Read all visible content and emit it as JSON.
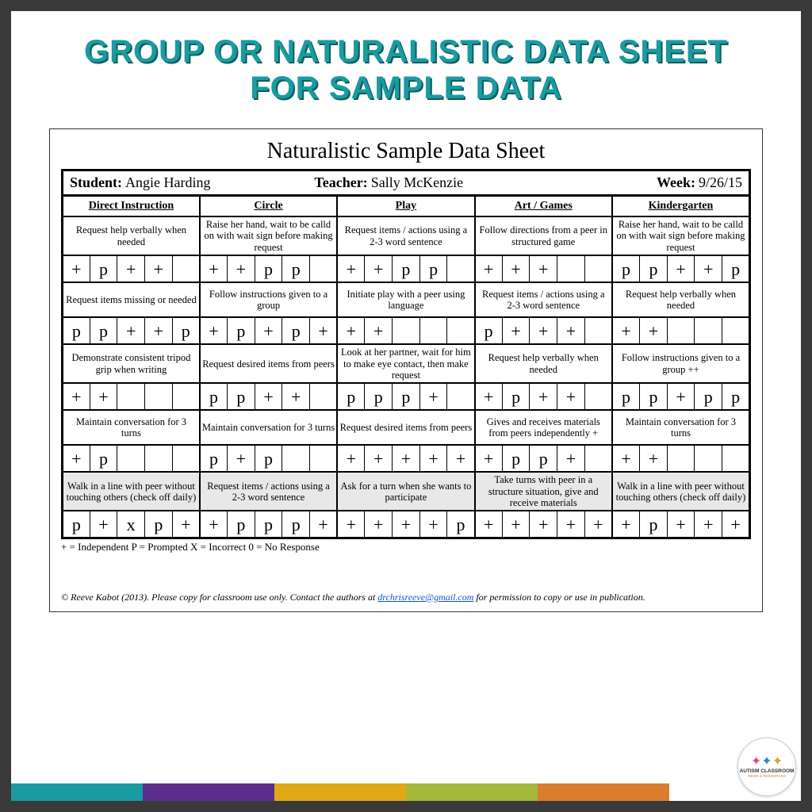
{
  "title_line1": "GROUP OR NATURALISTIC DATA SHEET",
  "title_line2": "FOR SAMPLE DATA",
  "sheet_title": "Naturalistic Sample Data Sheet",
  "info": {
    "student_label": "Student:",
    "student_value": "Angie Harding",
    "teacher_label": "Teacher:",
    "teacher_value": "Sally McKenzie",
    "week_label": "Week:",
    "week_value": "9/26/15"
  },
  "columns": [
    "Direct Instruction",
    "Circle",
    "Play",
    "Art / Games",
    "Kindergarten"
  ],
  "rows": [
    {
      "shade": false,
      "desc": [
        "Request help verbally when needed",
        "Raise her hand, wait to be calld on with wait sign before making request",
        "Request items / actions using a 2-3 word sentence",
        "Follow directions from a peer in structured game",
        "Raise her hand, wait to be calld on with wait sign before making request"
      ],
      "marks": [
        [
          "+",
          "p",
          "+",
          "+",
          ""
        ],
        [
          "+",
          "+",
          "p",
          "p",
          ""
        ],
        [
          "+",
          "+",
          "p",
          "p",
          ""
        ],
        [
          "+",
          "+",
          "+",
          "",
          ""
        ],
        [
          "p",
          "p",
          "+",
          "+",
          "p"
        ]
      ]
    },
    {
      "shade": false,
      "desc": [
        "Request items missing or needed",
        "Follow instructions given to a group",
        "Initiate play with a peer using language",
        "Request items / actions using a 2-3 word sentence",
        "Request help verbally when needed"
      ],
      "marks": [
        [
          "p",
          "p",
          "+",
          "+",
          "p"
        ],
        [
          "+",
          "p",
          "+",
          "p",
          "+"
        ],
        [
          "+",
          "+",
          "",
          "",
          ""
        ],
        [
          "p",
          "+",
          "+",
          "+",
          ""
        ],
        [
          "+",
          "+",
          "",
          "",
          ""
        ]
      ]
    },
    {
      "shade": false,
      "desc": [
        "Demonstrate consistent tripod grip when writing",
        "Request desired items from peers",
        "Look at her partner, wait for him to make eye contact, then make request",
        "Request help verbally when needed",
        "Follow instructions given to a group   ++"
      ],
      "marks": [
        [
          "+",
          "+",
          "",
          "",
          ""
        ],
        [
          "p",
          "p",
          "+",
          "+",
          ""
        ],
        [
          "p",
          "p",
          "p",
          "+",
          ""
        ],
        [
          "+",
          "p",
          "+",
          "+",
          ""
        ],
        [
          "p",
          "p",
          "+",
          "p",
          "p"
        ]
      ]
    },
    {
      "shade": false,
      "desc": [
        "Maintain conversation for 3 turns",
        "Maintain conversation for 3 turns",
        "Request desired items from peers",
        "Gives and receives materials from peers independently  +",
        "Maintain conversation for 3 turns"
      ],
      "marks": [
        [
          "+",
          "p",
          "",
          "",
          ""
        ],
        [
          "p",
          "+",
          "p",
          "",
          ""
        ],
        [
          "+",
          "+",
          "+",
          "+",
          "+"
        ],
        [
          "+",
          "p",
          "p",
          "+",
          ""
        ],
        [
          "+",
          "+",
          "",
          "",
          ""
        ]
      ]
    },
    {
      "shade": true,
      "desc": [
        "Walk in a line with peer without touching others (check off daily)",
        "Request items / actions using a 2-3 word sentence",
        "Ask for a turn when she wants to participate",
        "Take turns with peer in a structure situation, give and receive materials",
        "Walk in a line with peer without touching others (check off daily)"
      ],
      "marks": [
        [
          "p",
          "+",
          "x",
          "p",
          "+"
        ],
        [
          "+",
          "p",
          "p",
          "p",
          "+"
        ],
        [
          "+",
          "+",
          "+",
          "+",
          "p"
        ],
        [
          "+",
          "+",
          "+",
          "+",
          "+"
        ],
        [
          "+",
          "p",
          "+",
          "+",
          "+"
        ]
      ]
    }
  ],
  "legend": "+ = Independent  P = Prompted  X = Incorrect  0 = No Response",
  "copyright_pre": "© Reeve Kabot (2013). Please copy for classroom use only. Contact the authors at ",
  "copyright_email": "drchrisreeve@gmail.com",
  "copyright_post": " for permission to copy or use in publication.",
  "bar_colors": [
    "#1a9ba0",
    "#5b2e8e",
    "#e0a817",
    "#a4b83a",
    "#d97d2e",
    "#ffffff"
  ],
  "logo": {
    "line1": "AUTISM CLASSROOM",
    "line2": "NEWS & RESOURCES"
  }
}
